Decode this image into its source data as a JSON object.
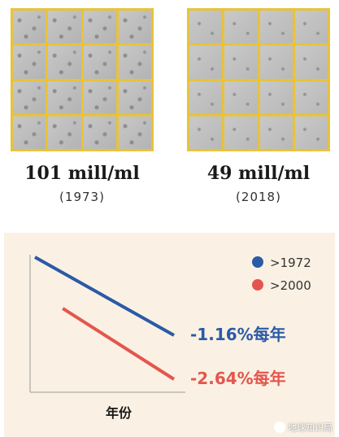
{
  "panels": [
    {
      "count": "101 mill/ml",
      "year": "(1973)"
    },
    {
      "count": "49 mill/ml",
      "year": "(2018)"
    }
  ],
  "chart_data": {
    "type": "line",
    "xlabel": "年份",
    "ylabel": "",
    "legend_position": "top-right",
    "series": [
      {
        "name": ">1972",
        "color": "#2b5aa6",
        "x": [
          0,
          1
        ],
        "y": [
          1.0,
          0.36
        ],
        "trend_label": "-1.16%每年"
      },
      {
        "name": ">2000",
        "color": "#e4564d",
        "x": [
          0.2,
          1
        ],
        "y": [
          0.58,
          0.0
        ],
        "trend_label": "-2.64%每年"
      }
    ]
  },
  "watermark": "地球知识局"
}
